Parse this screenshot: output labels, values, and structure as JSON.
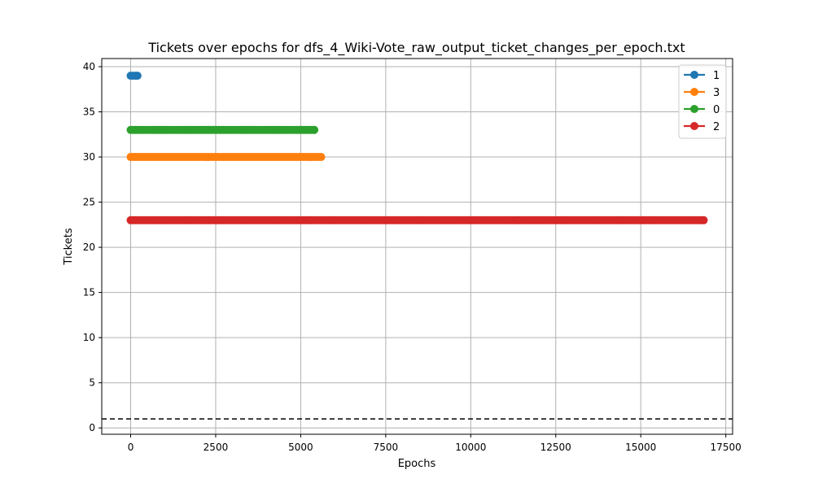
{
  "chart_data": {
    "type": "line",
    "title": "Tickets over epochs for dfs_4_Wiki-Vote_raw_output_ticket_changes_per_epoch.txt",
    "xlabel": "Epochs",
    "ylabel": "Tickets",
    "xlim": [
      -850,
      17700
    ],
    "ylim": [
      -0.7,
      40.9
    ],
    "xticks": [
      0,
      2500,
      5000,
      7500,
      10000,
      12500,
      15000,
      17500
    ],
    "yticks": [
      0,
      5,
      10,
      15,
      20,
      25,
      30,
      35,
      40
    ],
    "grid": true,
    "legend_position": "top-right",
    "marker": "circle",
    "series": [
      {
        "name": "1",
        "color": "#1f77b4",
        "x_start": 0,
        "x_end": 200,
        "value": 39
      },
      {
        "name": "3",
        "color": "#ff7f0e",
        "x_start": 0,
        "x_end": 5600,
        "value": 30
      },
      {
        "name": "0",
        "color": "#2ca02c",
        "x_start": 0,
        "x_end": 5400,
        "value": 33
      },
      {
        "name": "2",
        "color": "#d62728",
        "x_start": 0,
        "x_end": 16850,
        "value": 23
      }
    ],
    "reference_line": {
      "value": 1,
      "style": "dashed",
      "color": "#000000"
    }
  }
}
